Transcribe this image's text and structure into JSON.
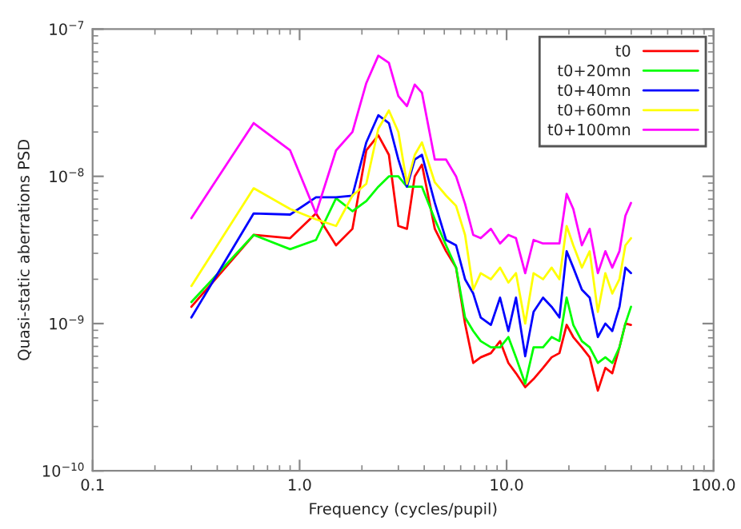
{
  "chart_data": {
    "type": "line",
    "xlabel": "Frequency (cycles/pupil)",
    "ylabel": "Quasi-static aberrations PSD",
    "log": "xy",
    "grid": false,
    "legend": "top right",
    "marker": "none",
    "line_style": "solid",
    "xlim": [
      0.1,
      100.0
    ],
    "ylim": [
      1e-10,
      1e-07
    ],
    "xticks": [
      {
        "value": 0.1,
        "label": "0.1"
      },
      {
        "value": 1.0,
        "label": "1.0"
      },
      {
        "value": 10.0,
        "label": "10.0"
      },
      {
        "value": 100.0,
        "label": "100.0"
      }
    ],
    "yticks": [
      {
        "value": 1e-10,
        "label": "10$^{−10}$"
      },
      {
        "value": 1e-09,
        "label": "10$^{−9}$"
      },
      {
        "value": 1e-08,
        "label": "10$^{−8}$"
      },
      {
        "value": 1e-07,
        "label": "10$^{−7}$"
      }
    ],
    "x": [
      0.3,
      0.6,
      0.9,
      1.2,
      1.5,
      1.8,
      2.1,
      2.4,
      2.7,
      3.0,
      3.3,
      3.6,
      3.9,
      4.5,
      5.1,
      5.7,
      6.3,
      6.9,
      7.5,
      8.4,
      9.3,
      10.2,
      11.1,
      12.3,
      13.5,
      15.0,
      16.5,
      18.0,
      19.5,
      21.0,
      23.1,
      25.2,
      27.6,
      30.0,
      32.4,
      35.1,
      37.5,
      39.9
    ],
    "series": [
      {
        "name": "t0",
        "color": "#ff0000",
        "values": [
          1.3e-09,
          4e-09,
          3.8e-09,
          5.6e-09,
          3.4e-09,
          4.4e-09,
          1.5e-08,
          1.9e-08,
          1.4e-08,
          4.6e-09,
          4.4e-09,
          1e-08,
          1.2e-08,
          4.4e-09,
          3.1e-09,
          2.4e-09,
          1e-09,
          5.4e-10,
          5.9e-10,
          6.3e-10,
          7.6e-10,
          5.4e-10,
          4.6e-10,
          3.7e-10,
          4.2e-10,
          5e-10,
          5.9e-10,
          6.3e-10,
          9.8e-10,
          8.1e-10,
          6.9e-10,
          5.9e-10,
          3.5e-10,
          5e-10,
          4.6e-10,
          6.9e-10,
          1e-09,
          9.8e-10
        ]
      },
      {
        "name": "t0+20mn",
        "color": "#00ff00",
        "values": [
          1.4e-09,
          4e-09,
          3.2e-09,
          3.7e-09,
          7.1e-09,
          5.8e-09,
          6.8e-09,
          8.5e-09,
          1e-08,
          1e-08,
          8.5e-09,
          8.5e-09,
          8.5e-09,
          5.1e-09,
          3.4e-09,
          2.4e-09,
          1.1e-09,
          8.9e-10,
          7.6e-10,
          6.9e-10,
          6.9e-10,
          8.1e-10,
          5.9e-10,
          3.9e-10,
          6.9e-10,
          6.9e-10,
          8.1e-10,
          7.6e-10,
          1.5e-09,
          9.8e-10,
          7.6e-10,
          6.9e-10,
          5.4e-10,
          5.9e-10,
          5.4e-10,
          6.9e-10,
          1e-09,
          1.3e-09
        ]
      },
      {
        "name": "t0+40mn",
        "color": "#0000ff",
        "values": [
          1.1e-09,
          5.6e-09,
          5.5e-09,
          7.2e-09,
          7.2e-09,
          7.4e-09,
          1.7e-08,
          2.6e-08,
          2.3e-08,
          1.3e-08,
          8.5e-09,
          1.3e-08,
          1.4e-08,
          6.6e-09,
          3.7e-09,
          3.4e-09,
          2e-09,
          1.6e-09,
          1.1e-09,
          9.8e-10,
          1.5e-09,
          8.9e-10,
          1.5e-09,
          6e-10,
          1.2e-09,
          1.5e-09,
          1.3e-09,
          1.1e-09,
          3.1e-09,
          2.4e-09,
          1.7e-09,
          1.5e-09,
          8.1e-10,
          1e-09,
          8.9e-10,
          1.3e-09,
          2.4e-09,
          2.2e-09
        ]
      },
      {
        "name": "t0+60mn",
        "color": "#ffff00",
        "values": [
          1.8e-09,
          8.3e-09,
          6e-09,
          5.1e-09,
          4.6e-09,
          7.4e-09,
          8.9e-09,
          2.1e-08,
          2.8e-08,
          2e-08,
          8.9e-09,
          1.4e-08,
          1.7e-08,
          9.1e-09,
          7.4e-09,
          6.3e-09,
          4e-09,
          1.7e-09,
          2.2e-09,
          2e-09,
          2.4e-09,
          1.9e-09,
          2.2e-09,
          1e-09,
          2.2e-09,
          2e-09,
          2.4e-09,
          2e-09,
          4.6e-09,
          3.4e-09,
          2.4e-09,
          3.1e-09,
          1.2e-09,
          2.2e-09,
          1.6e-09,
          2e-09,
          3.4e-09,
          3.8e-09
        ]
      },
      {
        "name": "t0+100mn",
        "color": "#ff00ff",
        "values": [
          5.2e-09,
          2.3e-08,
          1.5e-08,
          5.6e-09,
          1.5e-08,
          2e-08,
          4.3e-08,
          6.6e-08,
          5.9e-08,
          3.5e-08,
          3e-08,
          4.2e-08,
          3.7e-08,
          1.3e-08,
          1.3e-08,
          1e-08,
          6.5e-09,
          4e-09,
          3.8e-09,
          4.4e-09,
          3.5e-09,
          4e-09,
          3.8e-09,
          2.2e-09,
          3.7e-09,
          3.5e-09,
          3.5e-09,
          3.5e-09,
          7.6e-09,
          6e-09,
          3.4e-09,
          4.4e-09,
          2.2e-09,
          3.1e-09,
          2.4e-09,
          3.1e-09,
          5.4e-09,
          6.6e-09
        ]
      }
    ]
  }
}
